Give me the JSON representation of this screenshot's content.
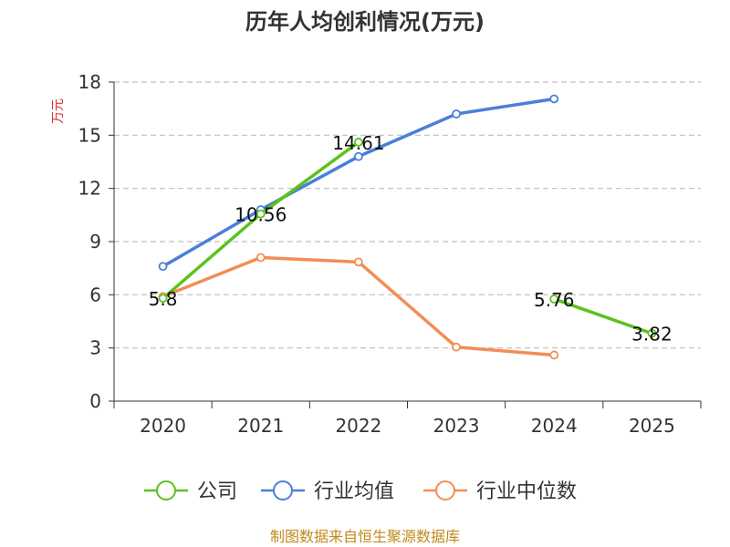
{
  "chart_data": {
    "type": "line",
    "title": "历年人均创利情况(万元)",
    "xlabel": "",
    "ylabel": "万元",
    "categories": [
      "2020",
      "2021",
      "2022",
      "2023",
      "2024",
      "2025"
    ],
    "ylim": [
      0,
      18
    ],
    "yticks": [
      0,
      3,
      6,
      9,
      12,
      15,
      18
    ],
    "grid": true,
    "legend_position": "bottom",
    "series": [
      {
        "name": "公司",
        "color": "#5cc21e",
        "values": [
          5.8,
          10.56,
          14.61,
          null,
          5.76,
          3.82
        ],
        "labels": [
          "5.8",
          "10.56",
          "14.61",
          "",
          "5.76",
          "3.82"
        ]
      },
      {
        "name": "行业均值",
        "color": "#4a7fd9",
        "values": [
          7.6,
          10.8,
          13.8,
          16.2,
          17.05,
          null
        ]
      },
      {
        "name": "行业中位数",
        "color": "#f58c55",
        "values": [
          5.9,
          8.1,
          7.85,
          3.05,
          2.6,
          null
        ]
      }
    ],
    "source": "制图数据来自恒生聚源数据库"
  }
}
